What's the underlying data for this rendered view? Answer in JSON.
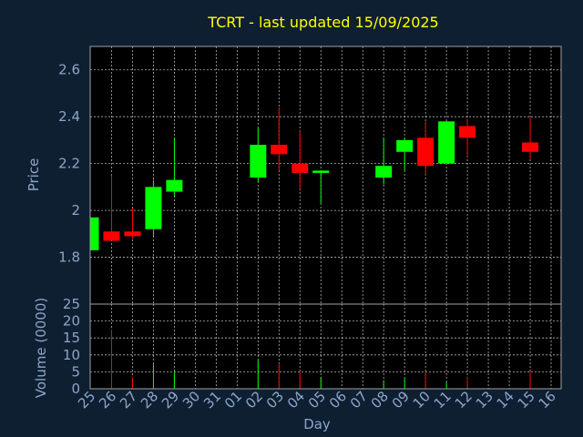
{
  "chart_data": [
    {
      "type": "candlestick",
      "title": "TCRT - last updated 15/09/2025",
      "xlabel": "Day",
      "ylabel": "Price",
      "grid": true,
      "ylim": [
        1.6,
        2.7
      ],
      "yticks": [
        1.8,
        2,
        2.2,
        2.4,
        2.6
      ],
      "ytick_labels": [
        "1.8",
        "2",
        "2.2",
        "2.4",
        "2.6"
      ],
      "categories": [
        "25",
        "26",
        "27",
        "28",
        "29",
        "30",
        "31",
        "01",
        "02",
        "03",
        "04",
        "05",
        "06",
        "07",
        "08",
        "09",
        "10",
        "11",
        "12",
        "13",
        "14",
        "15",
        "16"
      ],
      "series": [
        {
          "day": "25",
          "open": 1.83,
          "high": 1.97,
          "low": 1.83,
          "close": 1.97
        },
        {
          "day": "26",
          "open": 1.91,
          "high": 2.15,
          "low": 1.87,
          "close": 1.87
        },
        {
          "day": "27",
          "open": 1.91,
          "high": 2.01,
          "low": 1.88,
          "close": 1.89
        },
        {
          "day": "28",
          "open": 1.92,
          "high": 2.13,
          "low": 1.89,
          "close": 2.1
        },
        {
          "day": "29",
          "open": 2.08,
          "high": 2.31,
          "low": 2.06,
          "close": 2.13
        },
        {
          "day": "02",
          "open": 2.14,
          "high": 2.35,
          "low": 2.12,
          "close": 2.28
        },
        {
          "day": "03",
          "open": 2.28,
          "high": 2.44,
          "low": 2.17,
          "close": 2.24
        },
        {
          "day": "04",
          "open": 2.2,
          "high": 2.34,
          "low": 2.09,
          "close": 2.16
        },
        {
          "day": "05",
          "open": 2.16,
          "high": 2.17,
          "low": 2.03,
          "close": 2.17
        },
        {
          "day": "08",
          "open": 2.14,
          "high": 2.31,
          "low": 2.11,
          "close": 2.19
        },
        {
          "day": "09",
          "open": 2.25,
          "high": 2.31,
          "low": 2.17,
          "close": 2.3
        },
        {
          "day": "10",
          "open": 2.31,
          "high": 2.38,
          "low": 2.15,
          "close": 2.19
        },
        {
          "day": "11",
          "open": 2.2,
          "high": 2.38,
          "low": 2.2,
          "close": 2.38
        },
        {
          "day": "12",
          "open": 2.36,
          "high": 2.39,
          "low": 2.23,
          "close": 2.31
        },
        {
          "day": "15",
          "open": 2.29,
          "high": 2.4,
          "low": 2.22,
          "close": 2.25
        }
      ]
    },
    {
      "type": "bar",
      "ylabel": "Volume (0000)",
      "xlabel": "Day",
      "grid": true,
      "ylim": [
        0,
        25
      ],
      "yticks": [
        0,
        5,
        10,
        15,
        20,
        25
      ],
      "ytick_labels": [
        "0",
        "5",
        "10",
        "15",
        "20",
        "25"
      ],
      "categories": [
        "25",
        "26",
        "27",
        "28",
        "29",
        "30",
        "31",
        "01",
        "02",
        "03",
        "04",
        "05",
        "06",
        "07",
        "08",
        "09",
        "10",
        "11",
        "12",
        "13",
        "14",
        "15",
        "16"
      ],
      "values": [
        {
          "day": "25",
          "volume": 0,
          "direction": "up"
        },
        {
          "day": "26",
          "volume": 17.5,
          "direction": "down"
        },
        {
          "day": "27",
          "volume": 3.5,
          "direction": "down"
        },
        {
          "day": "28",
          "volume": 7.5,
          "direction": "up"
        },
        {
          "day": "29",
          "volume": 5,
          "direction": "up"
        },
        {
          "day": "02",
          "volume": 8.5,
          "direction": "up"
        },
        {
          "day": "03",
          "volume": 7.5,
          "direction": "down"
        },
        {
          "day": "04",
          "volume": 5,
          "direction": "down"
        },
        {
          "day": "05",
          "volume": 3.5,
          "direction": "up"
        },
        {
          "day": "08",
          "volume": 2.5,
          "direction": "up"
        },
        {
          "day": "09",
          "volume": 3,
          "direction": "up"
        },
        {
          "day": "10",
          "volume": 5,
          "direction": "down"
        },
        {
          "day": "11",
          "volume": 2,
          "direction": "up"
        },
        {
          "day": "12",
          "volume": 3.5,
          "direction": "down"
        },
        {
          "day": "15",
          "volume": 5,
          "direction": "down"
        }
      ]
    }
  ],
  "colors": {
    "background": "#0f1f32",
    "plot_background": "#000000",
    "title": "#ffff00",
    "axis_text": "#8ba6c8",
    "up": "#00ff00",
    "down": "#ff0000",
    "grid": "#ffffff",
    "frame": "#a0a0a0"
  }
}
